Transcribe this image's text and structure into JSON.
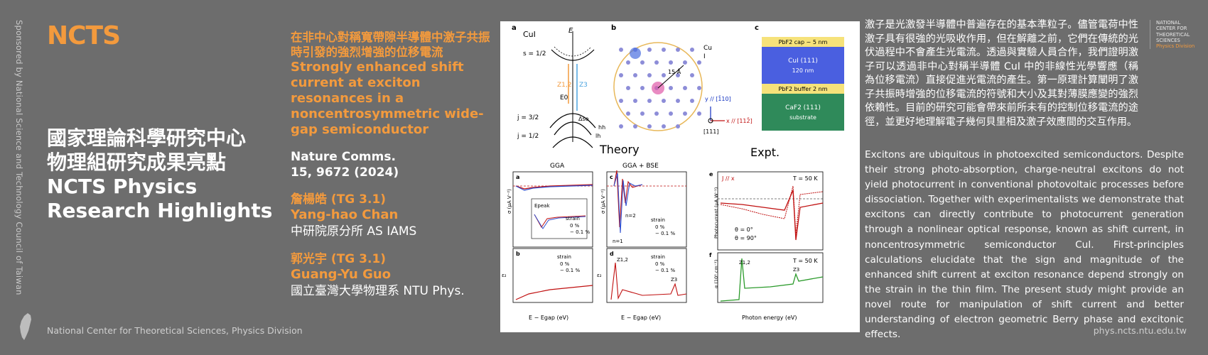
{
  "sponsor": "Sponsored by National Science and Technology Council of Taiwan",
  "logo": {
    "text": "NCTS"
  },
  "main_title": {
    "zh_line1": "國家理論科學研究中心",
    "zh_line2": "物理組研究成果亮點",
    "en_line1": "NCTS Physics",
    "en_line2": "Research Highlights"
  },
  "footer_left": "National Center for Theoretical Sciences, Physics Division",
  "paper": {
    "title_zh": "在非中心對稱寬帶隙半導體中激子共振時引發的強烈增強的位移電流",
    "title_en": "Strongly enhanced shift current at exciton resonances in a noncentrosymmetric wide-gap semiconductor",
    "journal_line1": "Nature Comms.",
    "journal_line2": "15, 9672 (2024)"
  },
  "authors": [
    {
      "name_zh": "詹楊皓 (TG 3.1)",
      "name_en": "Yang-hao Chan",
      "affiliation": "中研院原分所 AS IAMS"
    },
    {
      "name_zh": "郭光宇 (TG 3.1)",
      "name_en": "Guang-Yu Guo",
      "affiliation": "國立臺灣大學物理系 NTU Phys."
    }
  ],
  "figure": {
    "panel_a": "a",
    "panel_b": "b",
    "panel_c": "c",
    "cui": "CuI",
    "e_axis": "E",
    "s_half": "s = 1/2",
    "j32": "j = 3/2",
    "j12": "j = 1/2",
    "z12": "Z1,2",
    "z3": "Z3",
    "e0": "E0",
    "delta": "Δso",
    "hh": "hh",
    "lh": "lh",
    "dist": "15 Å",
    "cu": "Cu",
    "i": "I",
    "y_dir": "y // [1̄10]",
    "x_dir": "x // [112̄]",
    "z_dir": "[111]",
    "cap": "PbF2 cap ~ 5 nm",
    "cui_layer": "CuI (111)",
    "cui_thick": "120 nm",
    "buffer": "PbF2 buffer 2 nm",
    "substrate1": "CaF2 (111)",
    "substrate2": "substrate",
    "theory": "Theory",
    "expt": "Expt.",
    "gga": "GGA",
    "gga_bse": "GGA + BSE",
    "strain": "strain",
    "s0": "0 %",
    "s1": "− 0.1 %",
    "epeak": "Epeak",
    "n2": "n=2",
    "n1": "n=1",
    "jx": "J // x",
    "t50": "T = 50 K",
    "t50b": "T = 50 K",
    "theta0": "θ = 0°",
    "theta90": "θ = 90°",
    "xlabel_gap": "E − Egap (eV)",
    "xlabel_gap2": "E − Egap (eV)",
    "xlabel_photon": "Photon energy (eV)",
    "ylabel_sigma": "σ (μA V⁻²)",
    "ylabel_eps": "ε₂",
    "ylabel_pc": "Photocurrent (μA W⁻¹)",
    "ylabel_abs": "α (10⁵ cm⁻¹)",
    "pe": "e",
    "pf": "f",
    "pa": "a",
    "pb": "b",
    "pc": "c",
    "pd": "d"
  },
  "abstract_zh": "激子是光激發半導體中普遍存在的基本準粒子。儘管電荷中性激子具有很強的光吸收作用，但在解離之前，它們在傳統的光伏過程中不會產生光電流。透過與實驗人員合作，我們證明激子可以透過非中心對稱半導體 CuI 中的非線性光學響應（稱為位移電流）直接促進光電流的產生。第一原理計算闡明了激子共振時增強的位移電流的符號和大小及其對薄膜應變的強烈依賴性。目前的研究可能會帶來前所未有的控制位移電流的途徑，並更好地理解電子幾何貝里相及激子效應間的交互作用。",
  "abstract_en": "Excitons are ubiquitous in photoexcited semiconductors. Despite their strong photo-absorption, charge-neutral excitons do not yield photocurrent in conventional photovoltaic processes before dissociation. Together with experimentalists we demonstrate that excitons can directly contribute to photocurrent generation through a nonlinear optical response, known as shift current, in noncentrosymmetric semiconductor CuI. First-principles calculations elucidate that the sign and magnitude of the enhanced shift current at exciton resonance depend strongly on the strain in the thin film. The present study might provide an novel route for manipulation of shift current and better understanding of electron geometric Berry phase and excitonic effects.",
  "ncts_side": {
    "l1": "NATIONAL",
    "l2": "CENTER FOR",
    "l3": "THEORETICAL",
    "l4": "SCIENCES",
    "l5": "Physics Division"
  },
  "url": "phys.ncts.ntu.edu.tw",
  "colors": {
    "accent": "#f39a3d",
    "background": "#6d6d6d"
  }
}
